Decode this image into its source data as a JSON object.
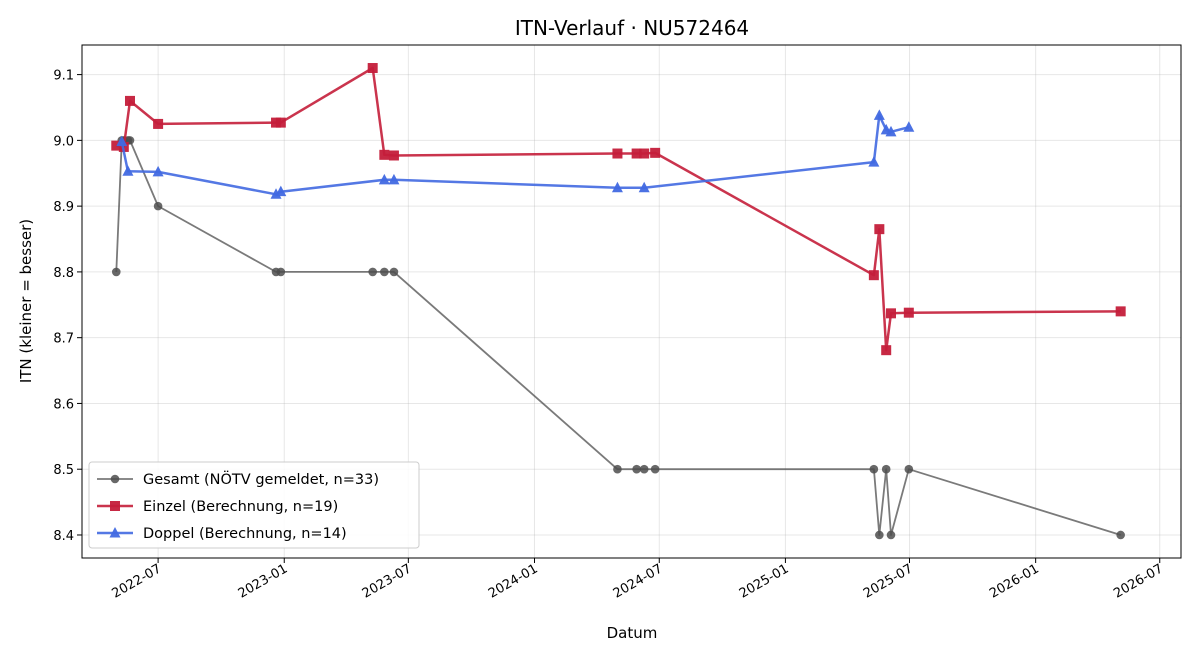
{
  "chart_data": {
    "type": "line",
    "title": "ITN-Verlauf · NU572464",
    "xlabel": "Datum",
    "ylabel": "ITN  (kleiner = besser)",
    "xlim": [
      "2022-03-12",
      "2026-08-01"
    ],
    "ylim": [
      8.365,
      9.145
    ],
    "x_ticks": [
      {
        "date": "2022-07-01",
        "label": "2022-07"
      },
      {
        "date": "2023-01-01",
        "label": "2023-01"
      },
      {
        "date": "2023-07-01",
        "label": "2023-07"
      },
      {
        "date": "2024-01-01",
        "label": "2024-01"
      },
      {
        "date": "2024-07-01",
        "label": "2024-07"
      },
      {
        "date": "2025-01-01",
        "label": "2025-01"
      },
      {
        "date": "2025-07-01",
        "label": "2025-07"
      },
      {
        "date": "2026-01-01",
        "label": "2026-01"
      },
      {
        "date": "2026-07-01",
        "label": "2026-07"
      }
    ],
    "y_ticks": [
      8.4,
      8.5,
      8.6,
      8.7,
      8.8,
      8.9,
      9.0,
      9.1
    ],
    "y_tick_labels": [
      "8.4",
      "8.5",
      "8.6",
      "8.7",
      "8.8",
      "8.9",
      "9.0",
      "9.1"
    ],
    "grid": true,
    "legend_position": "lower-left",
    "series": [
      {
        "name": "Gesamt (NÖTV gemeldet, n=33)",
        "color": "#4d4d4d",
        "marker": "circle",
        "points": [
          [
            "2022-05-01",
            8.8
          ],
          [
            "2022-05-09",
            9.0
          ],
          [
            "2022-05-12",
            9.0
          ],
          [
            "2022-05-18",
            9.0
          ],
          [
            "2022-05-21",
            9.0
          ],
          [
            "2022-07-01",
            8.9
          ],
          [
            "2022-12-20",
            8.8
          ],
          [
            "2022-12-27",
            8.8
          ],
          [
            "2023-05-10",
            8.8
          ],
          [
            "2023-05-27",
            8.8
          ],
          [
            "2023-06-10",
            8.8
          ],
          [
            "2024-05-01",
            8.5
          ],
          [
            "2024-05-29",
            8.5
          ],
          [
            "2024-06-09",
            8.5
          ],
          [
            "2024-06-25",
            8.5
          ],
          [
            "2025-05-10",
            8.5
          ],
          [
            "2025-05-18",
            8.4
          ],
          [
            "2025-05-28",
            8.5
          ],
          [
            "2025-06-04",
            8.4
          ],
          [
            "2025-06-30",
            8.5
          ],
          [
            "2026-05-05",
            8.4
          ]
        ]
      },
      {
        "name": "Einzel (Berechnung, n=19)",
        "color": "#c41e3a",
        "marker": "square",
        "points": [
          [
            "2022-05-01",
            8.992
          ],
          [
            "2022-05-12",
            8.99
          ],
          [
            "2022-05-21",
            9.06
          ],
          [
            "2022-07-01",
            9.025
          ],
          [
            "2022-12-20",
            9.027
          ],
          [
            "2022-12-27",
            9.027
          ],
          [
            "2023-05-10",
            9.11
          ],
          [
            "2023-05-27",
            8.978
          ],
          [
            "2023-06-10",
            8.977
          ],
          [
            "2024-05-01",
            8.98
          ],
          [
            "2024-05-29",
            8.98
          ],
          [
            "2024-06-09",
            8.98
          ],
          [
            "2024-06-25",
            8.981
          ],
          [
            "2025-05-10",
            8.795
          ],
          [
            "2025-05-18",
            8.865
          ],
          [
            "2025-05-28",
            8.681
          ],
          [
            "2025-06-04",
            8.737
          ],
          [
            "2025-06-30",
            8.738
          ],
          [
            "2026-05-05",
            8.74
          ]
        ]
      },
      {
        "name": "Doppel (Berechnung, n=14)",
        "color": "#4169e1",
        "marker": "triangle",
        "points": [
          [
            "2022-05-09",
            8.998
          ],
          [
            "2022-05-18",
            8.953
          ],
          [
            "2022-07-01",
            8.952
          ],
          [
            "2022-12-20",
            8.918
          ],
          [
            "2022-12-27",
            8.922
          ],
          [
            "2023-05-27",
            8.94
          ],
          [
            "2023-06-10",
            8.94
          ],
          [
            "2024-05-01",
            8.928
          ],
          [
            "2024-06-09",
            8.928
          ],
          [
            "2025-05-10",
            8.967
          ],
          [
            "2025-05-18",
            9.038
          ],
          [
            "2025-05-28",
            9.016
          ],
          [
            "2025-06-04",
            9.013
          ],
          [
            "2025-06-30",
            9.02
          ]
        ]
      }
    ]
  }
}
